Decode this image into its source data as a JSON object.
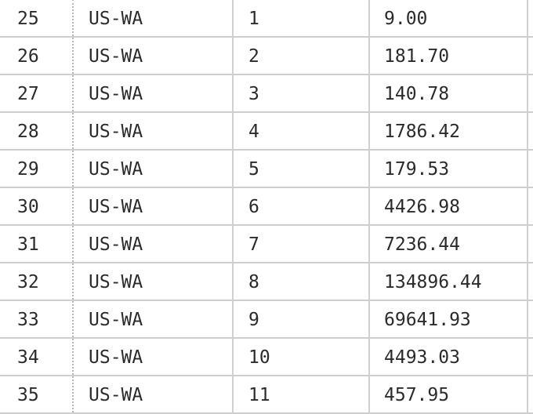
{
  "table": {
    "rows": [
      {
        "id": "25",
        "region": "US-WA",
        "n": "1",
        "value": "9.00"
      },
      {
        "id": "26",
        "region": "US-WA",
        "n": "2",
        "value": "181.70"
      },
      {
        "id": "27",
        "region": "US-WA",
        "n": "3",
        "value": "140.78"
      },
      {
        "id": "28",
        "region": "US-WA",
        "n": "4",
        "value": "1786.42"
      },
      {
        "id": "29",
        "region": "US-WA",
        "n": "5",
        "value": "179.53"
      },
      {
        "id": "30",
        "region": "US-WA",
        "n": "6",
        "value": "4426.98"
      },
      {
        "id": "31",
        "region": "US-WA",
        "n": "7",
        "value": "7236.44"
      },
      {
        "id": "32",
        "region": "US-WA",
        "n": "8",
        "value": "134896.44"
      },
      {
        "id": "33",
        "region": "US-WA",
        "n": "9",
        "value": "69641.93"
      },
      {
        "id": "34",
        "region": "US-WA",
        "n": "10",
        "value": "4493.03"
      },
      {
        "id": "35",
        "region": "US-WA",
        "n": "11",
        "value": "457.95"
      }
    ]
  }
}
